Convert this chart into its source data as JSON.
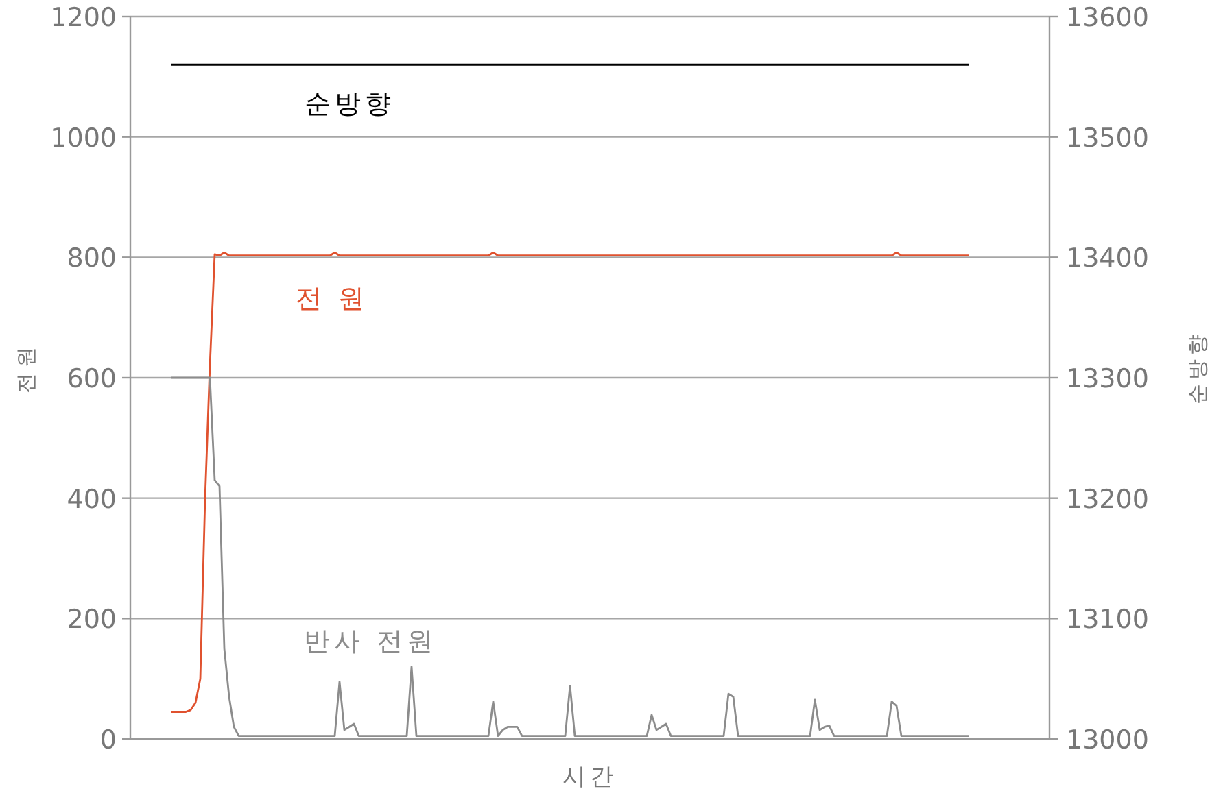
{
  "chart_data": {
    "type": "line",
    "xlabel": "시간",
    "ylabel": "전원",
    "y2label": "순방향",
    "ylim": [
      0,
      1200
    ],
    "yticks": [
      0,
      200,
      400,
      600,
      800,
      1000,
      1200
    ],
    "y2lim": [
      13000,
      13600
    ],
    "y2ticks": [
      13000,
      13100,
      13200,
      13300,
      13400,
      13500,
      13600
    ],
    "grid": "y",
    "categories": [
      null,
      null,
      null,
      null,
      null,
      null,
      null,
      null,
      null,
      null,
      null,
      null,
      null,
      null,
      null,
      null,
      null,
      null,
      null,
      null,
      null,
      null,
      null,
      null,
      null,
      null,
      null,
      null,
      null,
      null,
      null,
      null,
      null,
      null,
      null,
      null,
      null,
      null,
      null,
      null,
      null,
      null,
      null,
      null,
      null,
      null,
      null,
      null,
      null,
      null,
      null,
      null,
      null,
      null,
      null,
      null,
      null,
      null,
      null,
      null,
      null,
      null,
      null,
      null,
      null,
      null,
      null,
      null,
      null,
      null,
      null,
      null,
      null,
      null,
      null,
      null,
      null,
      null,
      null,
      null,
      null,
      null,
      null,
      null,
      null,
      null,
      null,
      null,
      null,
      null,
      null,
      null,
      null,
      null,
      null,
      null,
      null,
      null,
      null,
      null,
      null,
      null,
      null,
      null,
      null,
      null,
      null,
      null,
      null,
      null,
      null,
      null,
      null,
      null,
      null,
      null,
      null,
      null,
      null,
      null,
      null,
      null,
      null,
      null,
      null,
      null,
      null,
      null,
      null,
      null,
      null,
      null,
      null,
      null,
      null,
      null,
      null,
      null,
      null,
      null,
      null,
      null,
      null,
      null,
      null,
      null,
      null,
      null,
      null,
      null,
      null,
      null,
      null,
      null,
      null,
      null,
      null,
      null,
      null,
      null,
      null,
      null,
      null,
      null,
      null,
      null,
      null
    ],
    "series": [
      {
        "name": "순방향",
        "color": "#000000",
        "axis": "y2",
        "values": [
          13560,
          13560,
          13560,
          13560,
          13560,
          13560,
          13560,
          13560,
          13560,
          13560,
          13560,
          13560,
          13560,
          13560,
          13560,
          13560,
          13560,
          13560,
          13560,
          13560,
          13560,
          13560,
          13560,
          13560,
          13560,
          13560,
          13560,
          13560,
          13560,
          13560,
          13560,
          13560,
          13560,
          13560,
          13560,
          13560,
          13560,
          13560,
          13560,
          13560,
          13560,
          13560,
          13560,
          13560,
          13560,
          13560,
          13560,
          13560,
          13560,
          13560,
          13560,
          13560,
          13560,
          13560,
          13560,
          13560,
          13560,
          13560,
          13560,
          13560,
          13560,
          13560,
          13560,
          13560,
          13560,
          13560,
          13560,
          13560,
          13560,
          13560,
          13560,
          13560,
          13560,
          13560,
          13560,
          13560,
          13560,
          13560,
          13560,
          13560,
          13560,
          13560,
          13560,
          13560,
          13560,
          13560,
          13560,
          13560,
          13560,
          13560,
          13560,
          13560,
          13560,
          13560,
          13560,
          13560,
          13560,
          13560,
          13560,
          13560,
          13560,
          13560,
          13560,
          13560,
          13560,
          13560,
          13560,
          13560,
          13560,
          13560,
          13560,
          13560,
          13560,
          13560,
          13560,
          13560,
          13560,
          13560,
          13560,
          13560,
          13560,
          13560,
          13560,
          13560,
          13560,
          13560,
          13560,
          13560,
          13560,
          13560,
          13560,
          13560,
          13560,
          13560,
          13560,
          13560,
          13560,
          13560,
          13560,
          13560,
          13560,
          13560,
          13560,
          13560,
          13560,
          13560,
          13560,
          13560,
          13560,
          13560,
          13560,
          13560,
          13560,
          13560,
          13560,
          13560,
          13560,
          13560,
          13560,
          13560,
          13560,
          13560,
          13560,
          13560,
          13560,
          13560,
          13560
        ]
      },
      {
        "name": "전 원",
        "color": "#e0522f",
        "values": [
          45,
          45,
          45,
          45,
          48,
          60,
          100,
          400,
          620,
          805,
          803,
          808,
          803,
          803,
          803,
          803,
          803,
          803,
          803,
          803,
          803,
          803,
          803,
          803,
          803,
          803,
          803,
          803,
          803,
          803,
          803,
          803,
          803,
          803,
          808,
          803,
          803,
          803,
          803,
          803,
          803,
          803,
          803,
          803,
          803,
          803,
          803,
          803,
          803,
          803,
          803,
          803,
          803,
          803,
          803,
          803,
          803,
          803,
          803,
          803,
          803,
          803,
          803,
          803,
          803,
          803,
          803,
          808,
          803,
          803,
          803,
          803,
          803,
          803,
          803,
          803,
          803,
          803,
          803,
          803,
          803,
          803,
          803,
          803,
          803,
          803,
          803,
          803,
          803,
          803,
          803,
          803,
          803,
          803,
          803,
          803,
          803,
          803,
          803,
          803,
          803,
          803,
          803,
          803,
          803,
          803,
          803,
          803,
          803,
          803,
          803,
          803,
          803,
          803,
          803,
          803,
          803,
          803,
          803,
          803,
          803,
          803,
          803,
          803,
          803,
          803,
          803,
          803,
          803,
          803,
          803,
          803,
          803,
          803,
          803,
          803,
          803,
          803,
          803,
          803,
          803,
          803,
          803,
          803,
          803,
          803,
          803,
          803,
          803,
          803,
          803,
          808,
          803,
          803,
          803,
          803,
          803,
          803,
          803,
          803,
          803,
          803,
          803,
          803,
          803,
          803,
          803
        ]
      },
      {
        "name": "반사 전원",
        "color": "#8c8c8c",
        "values": [
          600,
          600,
          600,
          600,
          600,
          600,
          600,
          600,
          600,
          430,
          420,
          150,
          70,
          20,
          5,
          5,
          5,
          5,
          5,
          5,
          5,
          5,
          5,
          5,
          5,
          5,
          5,
          5,
          5,
          5,
          5,
          5,
          5,
          5,
          5,
          95,
          15,
          20,
          25,
          5,
          5,
          5,
          5,
          5,
          5,
          5,
          5,
          5,
          5,
          5,
          120,
          5,
          5,
          5,
          5,
          5,
          5,
          5,
          5,
          5,
          5,
          5,
          5,
          5,
          5,
          5,
          5,
          62,
          5,
          15,
          20,
          20,
          20,
          5,
          5,
          5,
          5,
          5,
          5,
          5,
          5,
          5,
          5,
          88,
          5,
          5,
          5,
          5,
          5,
          5,
          5,
          5,
          5,
          5,
          5,
          5,
          5,
          5,
          5,
          5,
          40,
          15,
          20,
          25,
          5,
          5,
          5,
          5,
          5,
          5,
          5,
          5,
          5,
          5,
          5,
          5,
          75,
          70,
          5,
          5,
          5,
          5,
          5,
          5,
          5,
          5,
          5,
          5,
          5,
          5,
          5,
          5,
          5,
          5,
          65,
          15,
          20,
          22,
          5,
          5,
          5,
          5,
          5,
          5,
          5,
          5,
          5,
          5,
          5,
          5,
          62,
          55,
          5,
          5,
          5,
          5,
          5,
          5,
          5,
          5,
          5,
          5,
          5,
          5,
          5,
          5,
          5
        ]
      }
    ]
  }
}
